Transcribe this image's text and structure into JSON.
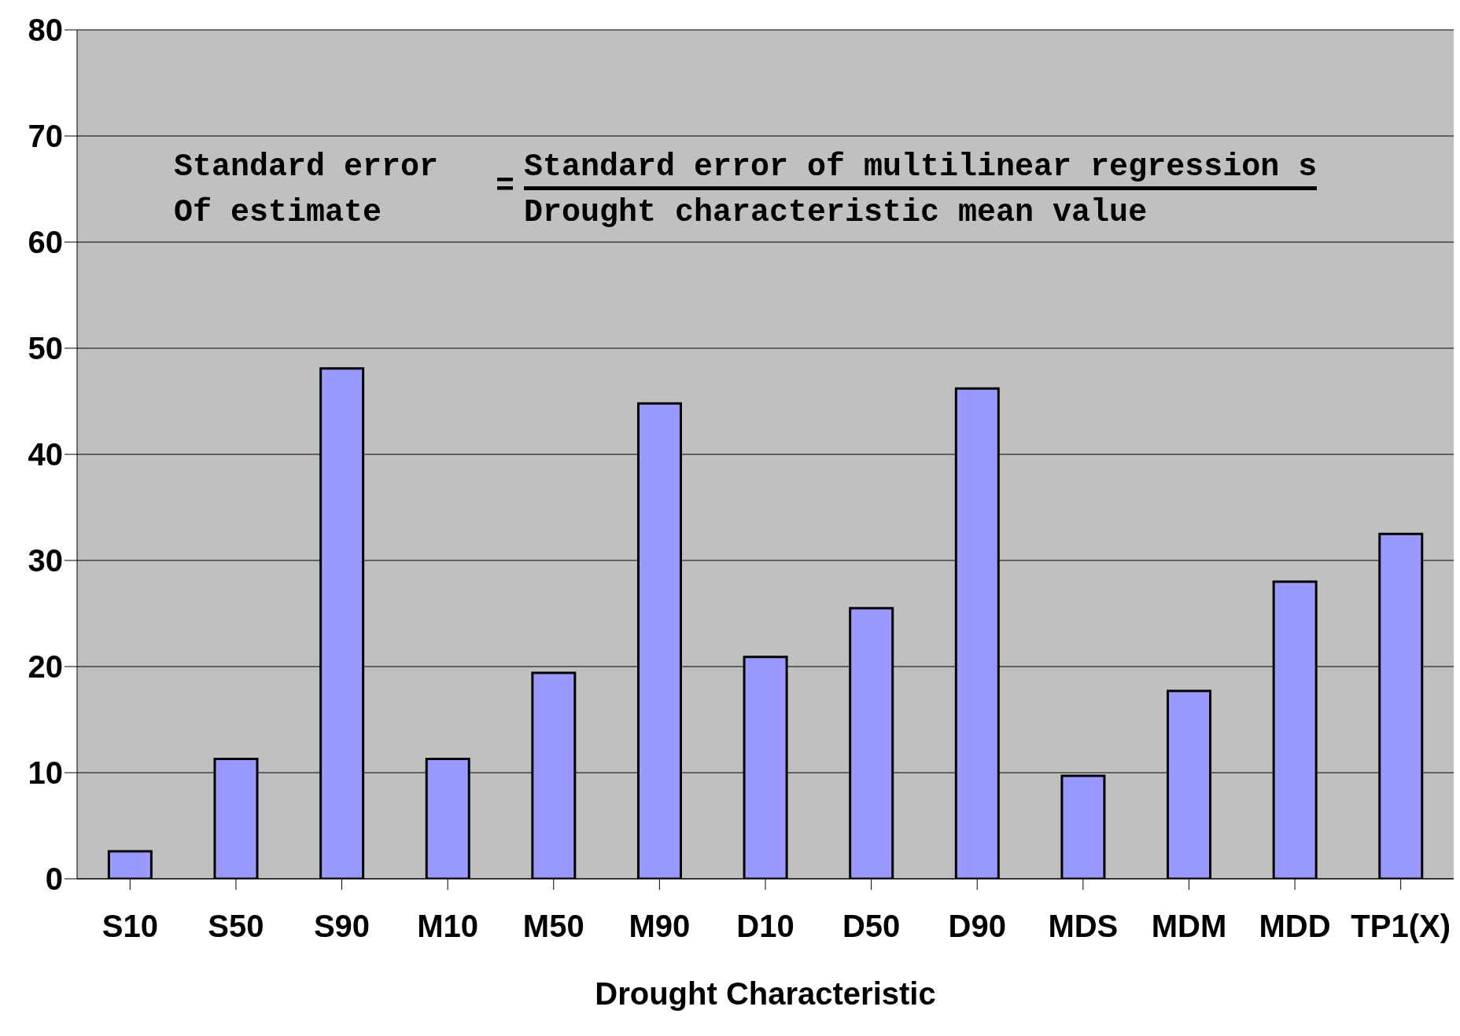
{
  "chart_data": {
    "type": "bar",
    "xlabel": "Drought Characteristic",
    "categories": [
      "S10",
      "S50",
      "S90",
      "M10",
      "M50",
      "M90",
      "D10",
      "D50",
      "D90",
      "MDS",
      "MDM",
      "MDD",
      "TP1(X)"
    ],
    "values": [
      2.6,
      11.3,
      48.1,
      11.3,
      19.4,
      44.8,
      20.9,
      25.5,
      46.2,
      9.7,
      17.7,
      28.0,
      32.5
    ],
    "color": "#9999ff",
    "ylim": [
      0,
      80
    ],
    "yticks": [
      0,
      10,
      20,
      30,
      40,
      50,
      60,
      70,
      80
    ],
    "grid": "y",
    "annotations": [
      "Standard error",
      "Of estimate",
      "=",
      "Standard error of multilinear regression s",
      "Drought characteristic mean value"
    ]
  }
}
